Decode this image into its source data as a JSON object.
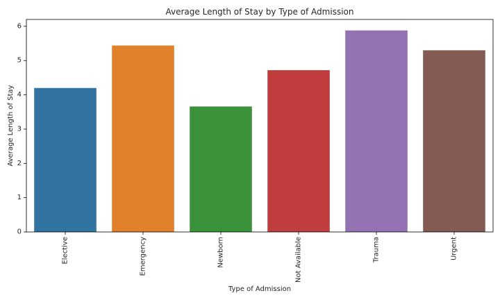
{
  "chart_data": {
    "type": "bar",
    "title": "Average Length of Stay by Type of Admission",
    "xlabel": "Type of Admission",
    "ylabel": "Average Length of Stay",
    "categories": [
      "Elective",
      "Emergency",
      "Newborn",
      "Not Available",
      "Trauma",
      "Urgent"
    ],
    "values": [
      4.2,
      5.44,
      3.66,
      4.72,
      5.88,
      5.3
    ],
    "colors": [
      "#3274a1",
      "#e1812c",
      "#3a923a",
      "#c03d3e",
      "#9372b2",
      "#845b53"
    ],
    "ylim": [
      0,
      6.2
    ],
    "yticks": [
      0,
      1,
      2,
      3,
      4,
      5,
      6
    ],
    "grid": false,
    "legend": "none"
  }
}
